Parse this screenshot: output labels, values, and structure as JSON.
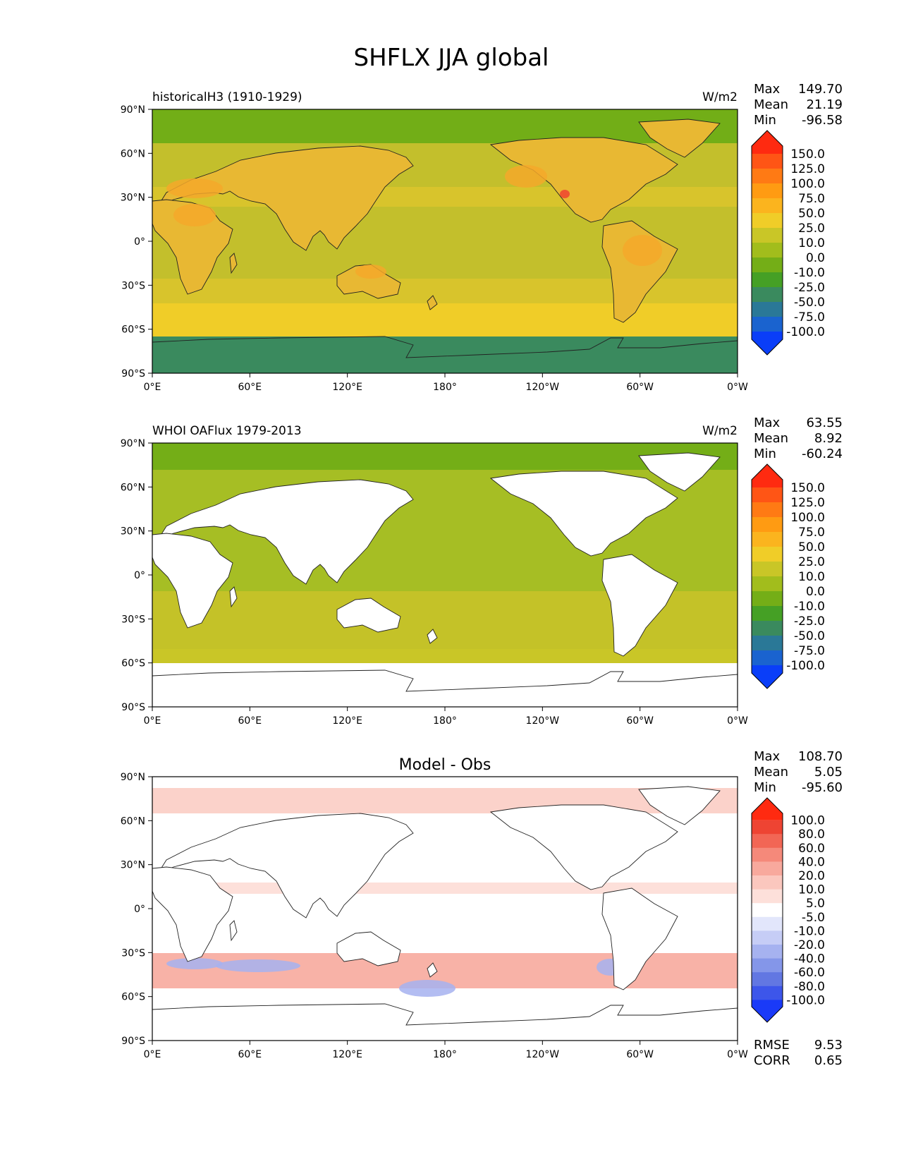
{
  "chart_data": {
    "type": "heatmap",
    "title": "SHFLX JJA global",
    "lon_ticks": [
      "0°E",
      "60°E",
      "120°E",
      "180°",
      "120°W",
      "60°W",
      "0°W"
    ],
    "lat_ticks": [
      "90°N",
      "60°N",
      "30°N",
      "0°",
      "30°S",
      "60°S",
      "90°S"
    ],
    "panels": [
      {
        "name": "model",
        "left_title": "historicalH3 (1910-1929)",
        "center_title": "",
        "units": "W/m2",
        "stats": [
          {
            "label": "Max",
            "value": "149.70"
          },
          {
            "label": "Mean",
            "value": "21.19"
          },
          {
            "label": "Min",
            "value": "-96.58"
          }
        ],
        "colorbar": {
          "levels": [
            "150.0",
            "125.0",
            "100.0",
            "75.0",
            "50.0",
            "25.0",
            "10.0",
            "0.0",
            "-10.0",
            "-25.0",
            "-50.0",
            "-75.0",
            "-100.0"
          ],
          "colors": [
            "#ff2a10",
            "#ff5515",
            "#ff7a14",
            "#ff9b12",
            "#fbb41e",
            "#f0cd28",
            "#c9c627",
            "#a2bd1c",
            "#74ae17",
            "#45a025",
            "#3a8a5e",
            "#2a7897",
            "#1a63cf",
            "#0a3ef8"
          ]
        },
        "regions": {
          "land": "#e8b833",
          "land_hot": "#f5a82a",
          "ocean": "#c3bf2c",
          "ocean_subtropic": "#d8c42c",
          "southern_ocean": "#f0cd28",
          "arctic": "#72ae17",
          "antarctic": "#3a8a5e"
        }
      },
      {
        "name": "obs",
        "left_title": "WHOI OAFlux 1979-2013",
        "center_title": "",
        "units": "W/m2",
        "stats": [
          {
            "label": "Max",
            "value": "63.55"
          },
          {
            "label": "Mean",
            "value": "8.92"
          },
          {
            "label": "Min",
            "value": "-60.24"
          }
        ],
        "colorbar": {
          "levels": [
            "150.0",
            "125.0",
            "100.0",
            "75.0",
            "50.0",
            "25.0",
            "10.0",
            "0.0",
            "-10.0",
            "-25.0",
            "-50.0",
            "-75.0",
            "-100.0"
          ],
          "colors": [
            "#ff2a10",
            "#ff5515",
            "#ff7a14",
            "#ff9b12",
            "#fbb41e",
            "#f0cd28",
            "#c9c627",
            "#a2bd1c",
            "#74ae17",
            "#45a025",
            "#3a8a5e",
            "#2a7897",
            "#1a63cf",
            "#0a3ef8"
          ]
        },
        "regions": {
          "land": "#ffffff",
          "ocean": "#a6be24",
          "ocean_subtropic": "#c4c228",
          "southern_ocean": "#c9c627",
          "arctic": "#74ae17",
          "antarctic": "#ffffff"
        }
      },
      {
        "name": "diff",
        "left_title": "",
        "center_title": "Model - Obs",
        "units": "",
        "stats": [
          {
            "label": "Max",
            "value": "108.70"
          },
          {
            "label": "Mean",
            "value": "5.05"
          },
          {
            "label": "Min",
            "value": "-95.60"
          }
        ],
        "metrics": [
          {
            "label": "RMSE",
            "value": "9.53"
          },
          {
            "label": "CORR",
            "value": "0.65"
          }
        ],
        "colorbar": {
          "levels": [
            "100.0",
            "80.0",
            "60.0",
            "40.0",
            "20.0",
            "10.0",
            "5.0",
            "-5.0",
            "-10.0",
            "-20.0",
            "-40.0",
            "-60.0",
            "-80.0",
            "-100.0"
          ],
          "colors": [
            "#ff2a10",
            "#ee4433",
            "#f26655",
            "#f5897a",
            "#f8a99d",
            "#fbc7be",
            "#fde0da",
            "#ffffff",
            "#e2e6fb",
            "#c6cdf6",
            "#a6b2f0",
            "#8496e9",
            "#6277e2",
            "#3d56ea",
            "#1a3af8"
          ]
        },
        "regions": {
          "land": "#ffffff",
          "ocean": "#fde0da",
          "southern_ocean": "#f8b2a7",
          "arctic": "#fbd2ca",
          "antarctic": "#ffffff",
          "negative_patch": "#a6b2f0"
        }
      }
    ]
  }
}
